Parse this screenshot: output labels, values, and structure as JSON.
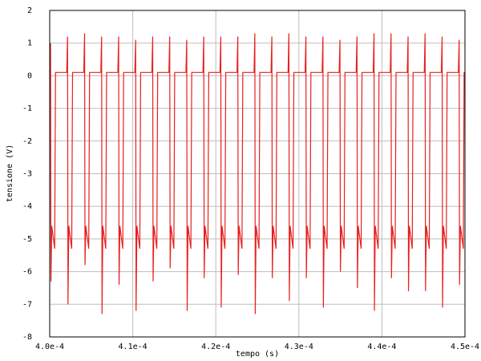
{
  "chart_data": {
    "type": "line",
    "xlabel": "tempo (s)",
    "ylabel": "tensione (V)",
    "xlim": [
      0.0004,
      0.00045
    ],
    "xticks": [
      {
        "value": 0.0004,
        "label": "4.0e-4"
      },
      {
        "value": 0.00041,
        "label": "4.1e-4"
      },
      {
        "value": 0.00042,
        "label": "4.2e-4"
      },
      {
        "value": 0.00043,
        "label": "4.3e-4"
      },
      {
        "value": 0.00044,
        "label": "4.4e-4"
      },
      {
        "value": 0.00045,
        "label": "4.5e-4"
      }
    ],
    "ylim": [
      -8,
      2
    ],
    "yticks": [
      -8,
      -7,
      -6,
      -5,
      -4,
      -3,
      -2,
      -1,
      0,
      1,
      2
    ],
    "grid": true,
    "x": [
      0.0004,
      0.0004001,
      0.00040015,
      0.00040025,
      0.0004006,
      0.0004007,
      0.00040205,
      0.00040215,
      0.0004022,
      0.0004023,
      0.00040265,
      0.00040275,
      0.0004041,
      0.0004042,
      0.00040425,
      0.00040435,
      0.0004047,
      0.0004048,
      0.00040615,
      0.00040625,
      0.0004063,
      0.0004064,
      0.00040675,
      0.00040685,
      0.0004082,
      0.0004083,
      0.00040835,
      0.00040845,
      0.0004088,
      0.0004089,
      0.00041025,
      0.00041035,
      0.0004104,
      0.0004105,
      0.00041085,
      0.00041095,
      0.0004123,
      0.0004124,
      0.00041245,
      0.00041255,
      0.0004129,
      0.000413,
      0.00041435,
      0.00041445,
      0.0004145,
      0.0004146,
      0.00041495,
      0.00041505,
      0.0004164,
      0.0004165,
      0.00041655,
      0.00041665,
      0.000417,
      0.0004171,
      0.00041845,
      0.00041855,
      0.0004186,
      0.0004187,
      0.00041905,
      0.00041915,
      0.0004205,
      0.0004206,
      0.00042065,
      0.00042075,
      0.0004211,
      0.0004212,
      0.00042255,
      0.00042265,
      0.0004227,
      0.0004228,
      0.00042315,
      0.00042325,
      0.0004246,
      0.0004247,
      0.00042475,
      0.00042485,
      0.0004252,
      0.0004253,
      0.00042665,
      0.00042675,
      0.0004268,
      0.0004269,
      0.00042725,
      0.00042735,
      0.0004287,
      0.0004288,
      0.00042885,
      0.00042895,
      0.0004293,
      0.0004294,
      0.00043075,
      0.00043085,
      0.0004309,
      0.000431,
      0.00043135,
      0.00043145,
      0.0004328,
      0.0004329,
      0.00043295,
      0.00043305,
      0.0004334,
      0.0004335,
      0.00043485,
      0.00043495,
      0.000435,
      0.0004351,
      0.00043545,
      0.00043555,
      0.0004369,
      0.000437,
      0.00043705,
      0.00043715,
      0.0004375,
      0.0004376,
      0.00043895,
      0.00043905,
      0.0004391,
      0.0004392,
      0.00043955,
      0.00043965,
      0.000441,
      0.0004411,
      0.00044115,
      0.00044125,
      0.0004416,
      0.0004417,
      0.00044305,
      0.00044315,
      0.0004432,
      0.0004433,
      0.00044365,
      0.00044375,
      0.0004451,
      0.0004452,
      0.00044525,
      0.00044535,
      0.0004457,
      0.0004458,
      0.00044715,
      0.00044725,
      0.0004473,
      0.0004474,
      0.00044775,
      0.00044785,
      0.0004492,
      0.0004493,
      0.00044935,
      0.00044945,
      0.0004498,
      0.0004499,
      0.00045
    ],
    "series": [
      {
        "color": "#e8201e",
        "values": [
          0.1,
          1.0,
          -6.3,
          -4.6,
          -5.3,
          0.1,
          0.1,
          1.2,
          -7.0,
          -4.6,
          -5.3,
          0.1,
          0.1,
          1.3,
          -5.8,
          -4.6,
          -5.3,
          0.1,
          0.1,
          1.2,
          -7.3,
          -4.6,
          -5.3,
          0.1,
          0.1,
          1.2,
          -6.4,
          -4.6,
          -5.3,
          0.1,
          0.1,
          1.1,
          -7.2,
          -4.6,
          -5.3,
          0.1,
          0.1,
          1.2,
          -6.3,
          -4.6,
          -5.3,
          0.1,
          0.1,
          1.2,
          -5.9,
          -4.6,
          -5.3,
          0.1,
          0.1,
          1.1,
          -7.2,
          -4.6,
          -5.3,
          0.1,
          0.1,
          1.2,
          -6.2,
          -4.6,
          -5.3,
          0.1,
          0.1,
          1.2,
          -7.1,
          -4.6,
          -5.3,
          0.1,
          0.1,
          1.2,
          -6.1,
          -4.6,
          -5.3,
          0.1,
          0.1,
          1.3,
          -7.3,
          -4.6,
          -5.3,
          0.1,
          0.1,
          1.2,
          -6.2,
          -4.6,
          -5.3,
          0.1,
          0.1,
          1.3,
          -6.9,
          -4.6,
          -5.3,
          0.1,
          0.1,
          1.2,
          -6.2,
          -4.6,
          -5.3,
          0.1,
          0.1,
          1.2,
          -7.1,
          -4.6,
          -5.3,
          0.1,
          0.1,
          1.1,
          -6.0,
          -4.6,
          -5.3,
          0.1,
          0.1,
          1.2,
          -6.5,
          -4.6,
          -5.3,
          0.1,
          0.1,
          1.3,
          -7.2,
          -4.6,
          -5.3,
          0.1,
          0.1,
          1.3,
          -6.2,
          -4.6,
          -5.3,
          0.1,
          0.1,
          1.2,
          -6.6,
          -4.6,
          -5.3,
          0.1,
          0.1,
          1.3,
          -6.6,
          -4.6,
          -5.3,
          0.1,
          0.1,
          1.2,
          -7.1,
          -4.6,
          -5.3,
          0.1,
          0.1,
          1.1,
          -6.4,
          -4.6,
          -5.3,
          0.1,
          0.1
        ]
      }
    ]
  }
}
